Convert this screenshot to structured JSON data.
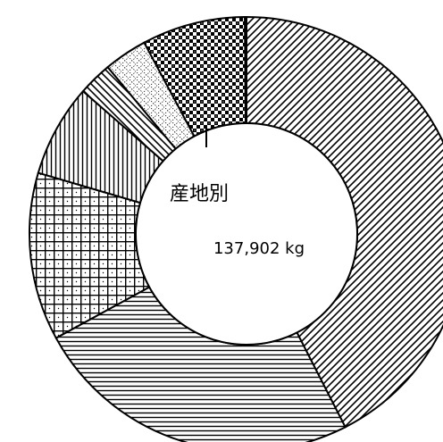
{
  "chart_data": {
    "type": "pie",
    "donut": true,
    "center_title": "産地別",
    "center_total": "137,902 kg",
    "legend": "none",
    "slices": [
      {
        "pattern": "diagonal-stripes",
        "value": 0.3893
      },
      {
        "pattern": "horizontal-stripes",
        "value": 0.2251
      },
      {
        "pattern": "grid",
        "value": 0.1146
      },
      {
        "pattern": "vertical-stripes",
        "value": 0.0631
      },
      {
        "pattern": "diagonal-stripes-reverse",
        "value": 0.0232
      },
      {
        "pattern": "dotted-crosshatch",
        "value": 0.0296
      },
      {
        "pattern": "checkerboard",
        "value": 0.0705
      },
      {
        "pattern": "blank",
        "value": 0.0011
      }
    ],
    "colors": {
      "stroke": "#000000",
      "fill": "#ffffff"
    }
  }
}
